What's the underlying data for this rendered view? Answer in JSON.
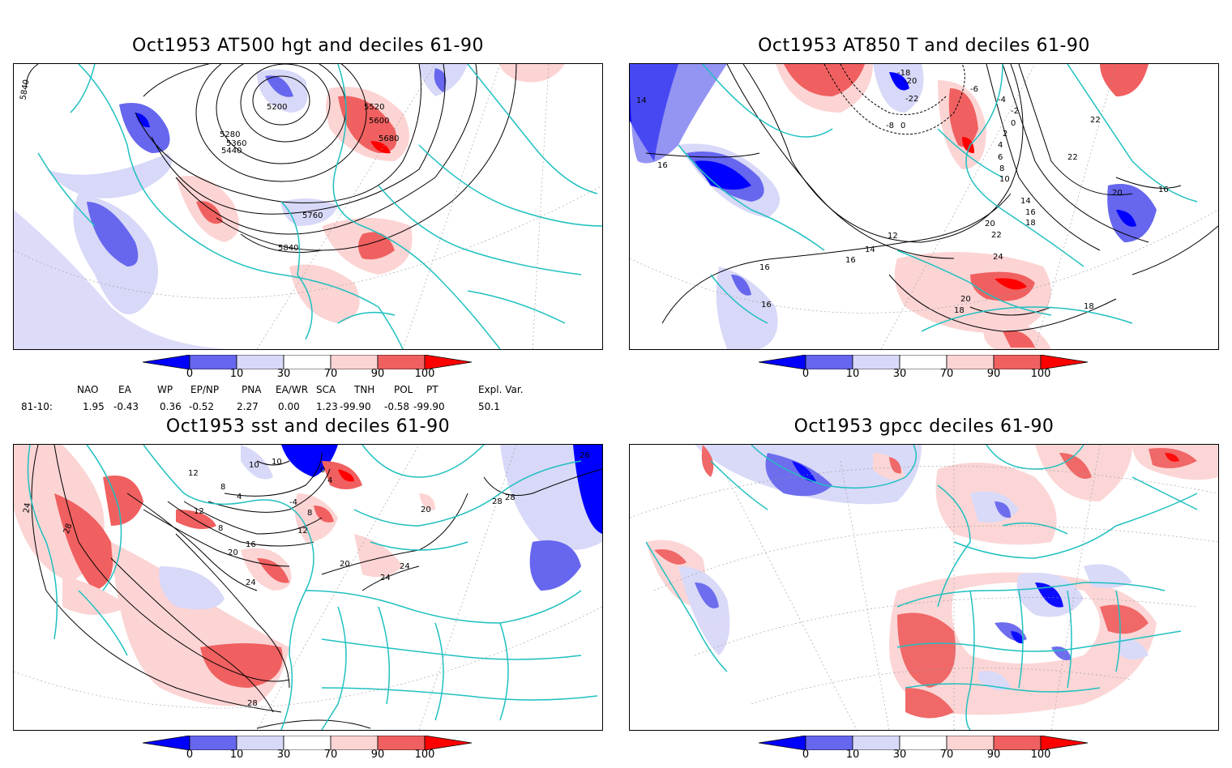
{
  "panels": [
    {
      "title": "Oct1953 AT500 hgt and deciles 61-90",
      "contour_labels": [
        "5840",
        "5200",
        "5280",
        "5360",
        "5440",
        "5520",
        "5600",
        "5680",
        "5760",
        "5840"
      ]
    },
    {
      "title": "Oct1953 AT850 T and deciles 61-90",
      "contour_labels": [
        "14",
        "16",
        "-18",
        "-20",
        "-22",
        "-6",
        "-4",
        "-2",
        "0",
        "2",
        "4",
        "6",
        "8",
        "10",
        "-8",
        "0",
        "22",
        "22",
        "20",
        "16",
        "14",
        "16",
        "18",
        "20",
        "22",
        "12",
        "14",
        "16",
        "24",
        "20",
        "18",
        "16",
        "16",
        "18"
      ]
    },
    {
      "title": "Oct1953 sst and deciles 61-90",
      "contour_labels": [
        "24",
        "28",
        "12",
        "8",
        "4",
        "10",
        "10",
        "0",
        "4",
        "-4",
        "8",
        "12",
        "16",
        "20",
        "24",
        "12",
        "8",
        "20",
        "24",
        "20",
        "24",
        "28",
        "28",
        "28",
        "26"
      ]
    },
    {
      "title": "Oct1953 gpcc deciles 61-90",
      "contour_labels": []
    }
  ],
  "colorbar": {
    "ticks": [
      "0",
      "10",
      "30",
      "70",
      "90",
      "100"
    ],
    "colors": [
      "#0000ff",
      "#6666ee",
      "#d8d8f8",
      "#ffffff",
      "#fcd4d4",
      "#f06060",
      "#ff0000"
    ]
  },
  "indices": {
    "headers": [
      "NAO",
      "EA",
      "WP",
      "EP/NP",
      "PNA",
      "EA/WR",
      "SCA",
      "TNH",
      "POL",
      "PT",
      "Expl. Var."
    ],
    "row_label": "81-10:",
    "values": [
      "1.95",
      "-0.43",
      "0.36",
      "-0.52",
      "2.27",
      "0.00",
      "1.23",
      "-99.90",
      "-0.58",
      "-99.90",
      "50.1"
    ]
  }
}
